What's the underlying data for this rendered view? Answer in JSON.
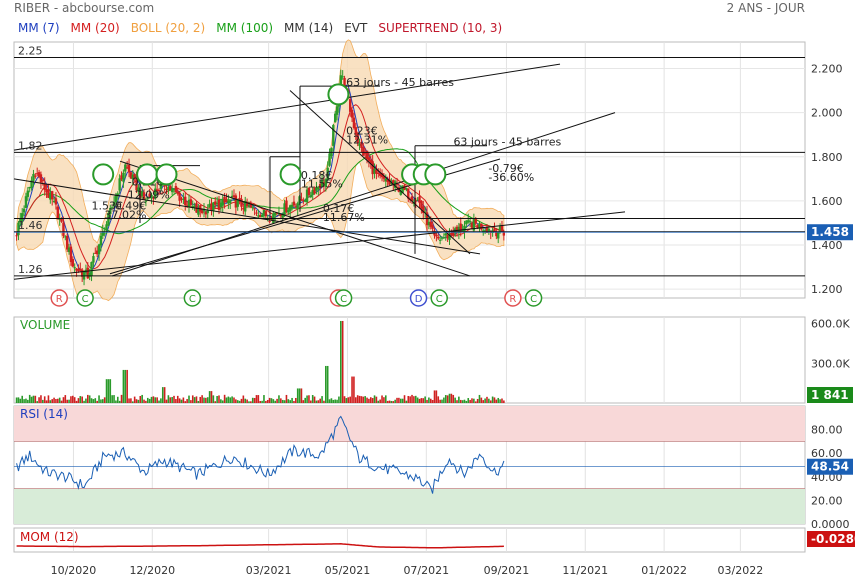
{
  "header": {
    "title": "RIBER - abcbourse.com",
    "period": "2 ANS - JOUR"
  },
  "legend": [
    {
      "label": "MM (7)",
      "color": "#1f3fbf"
    },
    {
      "label": "MM (20)",
      "color": "#d42020"
    },
    {
      "label": "BOLL (20, 2)",
      "color": "#f0a040"
    },
    {
      "label": "MM (100)",
      "color": "#19a019"
    },
    {
      "label": "MM (14)",
      "color": "#333333"
    },
    {
      "label": "EVT",
      "color": "#333333"
    },
    {
      "label": "SUPERTREND (10, 3)",
      "color": "#c0182c"
    }
  ],
  "colors": {
    "candle_up": "#2a9a2a",
    "candle_down": "#d02020",
    "boll_fill": "#f8dcb8",
    "last_price": "#1a5fb4",
    "rsi_line": "#1a5fb4",
    "mom_line": "#cc1111",
    "mom_badge": "#cc1111"
  },
  "chart_data": [
    {
      "type": "candlestick",
      "panel": "price",
      "yticks": [
        1.2,
        1.4,
        1.6,
        1.8,
        2.0,
        2.2
      ],
      "ytick_labels": [
        "1.200",
        "1.400",
        "1.600",
        "1.800",
        "2.000",
        "2.200"
      ],
      "ylim": [
        1.16,
        2.32
      ],
      "last_price": 1.458,
      "last_price_label": "1.458",
      "horizontal_levels": [
        2.25,
        1.82,
        1.52,
        1.46,
        1.26
      ],
      "level_labels": [
        {
          "text": "2.25",
          "price": 2.25
        },
        {
          "text": "1.82",
          "price": 1.82
        },
        {
          "text": "1.46",
          "price": 1.46
        },
        {
          "text": "1.26",
          "price": 1.26
        }
      ],
      "key_points": [
        {
          "date": "2020-08-18",
          "close": 1.46
        },
        {
          "date": "2020-09-01",
          "close": 1.74
        },
        {
          "date": "2020-09-18",
          "close": 1.56
        },
        {
          "date": "2020-10-01",
          "close": 1.3
        },
        {
          "date": "2020-10-12",
          "close": 1.26
        },
        {
          "date": "2020-10-28",
          "close": 1.52
        },
        {
          "date": "2020-11-10",
          "close": 1.76
        },
        {
          "date": "2020-11-25",
          "close": 1.6
        },
        {
          "date": "2020-12-10",
          "close": 1.68
        },
        {
          "date": "2021-01-05",
          "close": 1.55
        },
        {
          "date": "2021-02-01",
          "close": 1.6
        },
        {
          "date": "2021-03-01",
          "close": 1.53
        },
        {
          "date": "2021-03-25",
          "close": 1.6
        },
        {
          "date": "2021-04-15",
          "close": 1.7
        },
        {
          "date": "2021-04-26",
          "close": 2.18
        },
        {
          "date": "2021-05-10",
          "close": 1.85
        },
        {
          "date": "2021-05-25",
          "close": 1.7
        },
        {
          "date": "2021-06-10",
          "close": 1.66
        },
        {
          "date": "2021-06-25",
          "close": 1.6
        },
        {
          "date": "2021-07-08",
          "close": 1.42
        },
        {
          "date": "2021-07-20",
          "close": 1.45
        },
        {
          "date": "2021-08-05",
          "close": 1.5
        },
        {
          "date": "2021-08-20",
          "close": 1.47
        },
        {
          "date": "2021-08-30",
          "close": 1.458
        }
      ],
      "annotations": [
        {
          "text": "63 jours - 45 barres",
          "date": "2021-04-30",
          "price": 2.12
        },
        {
          "text": "63 jours - 45 barres",
          "date": "2021-07-22",
          "price": 1.85
        },
        {
          "text": "0.23€",
          "date": "2021-04-30",
          "price": 1.9
        },
        {
          "text": "12.31%",
          "date": "2021-04-30",
          "price": 1.86
        },
        {
          "text": "-0.79€",
          "date": "2021-08-18",
          "price": 1.73
        },
        {
          "text": "-36.60%",
          "date": "2021-08-18",
          "price": 1.69
        },
        {
          "text": "0.18€",
          "date": "2021-03-26",
          "price": 1.7
        },
        {
          "text": "11.55%",
          "date": "2021-03-26",
          "price": 1.66
        },
        {
          "text": "0.17€",
          "date": "2021-04-12",
          "price": 1.55
        },
        {
          "text": "11.67%",
          "date": "2021-04-12",
          "price": 1.51
        },
        {
          "text": "-0.21€",
          "date": "2020-11-12",
          "price": 1.67
        },
        {
          "text": "12.09%",
          "date": "2020-11-12",
          "price": 1.61
        },
        {
          "text": "1.53€",
          "date": "2020-10-15",
          "price": 1.56
        },
        {
          "text": "0.49€",
          "date": "2020-11-02",
          "price": 1.56
        },
        {
          "text": "37.02%",
          "date": "2020-10-25",
          "price": 1.52
        }
      ],
      "smileys": [
        "2020-10-24",
        "2020-11-27",
        "2020-12-12",
        "2021-03-18",
        "2021-04-24",
        "2021-06-20",
        "2021-06-29",
        "2021-07-08"
      ],
      "event_markers": [
        {
          "letter": "R",
          "date": "2020-09-20",
          "color": "#e05050"
        },
        {
          "letter": "C",
          "date": "2020-10-10",
          "color": "#2a9a2a"
        },
        {
          "letter": "C",
          "date": "2021-01-01",
          "color": "#2a9a2a"
        },
        {
          "letter": "R",
          "date": "2021-04-24",
          "color": "#e05050"
        },
        {
          "letter": "C",
          "date": "2021-04-28",
          "color": "#2a9a2a"
        },
        {
          "letter": "D",
          "date": "2021-06-25",
          "color": "#4050d0"
        },
        {
          "letter": "C",
          "date": "2021-07-11",
          "color": "#2a9a2a"
        },
        {
          "letter": "R",
          "date": "2021-09-06",
          "color": "#e05050"
        },
        {
          "letter": "C",
          "date": "2021-09-22",
          "color": "#2a9a2a"
        }
      ]
    },
    {
      "type": "bar",
      "panel": "volume",
      "title": "VOLUME",
      "yticks": [
        300000,
        600000
      ],
      "ytick_labels": [
        "300.0K",
        "600.0K"
      ],
      "ylim": [
        0,
        650000
      ],
      "last_value_label": "1 841",
      "peaks": [
        {
          "date": "2020-10-28",
          "value": 180000
        },
        {
          "date": "2020-11-10",
          "value": 250000
        },
        {
          "date": "2020-12-10",
          "value": 120000
        },
        {
          "date": "2021-01-15",
          "value": 90000
        },
        {
          "date": "2021-02-20",
          "value": 60000
        },
        {
          "date": "2021-03-25",
          "value": 110000
        },
        {
          "date": "2021-04-15",
          "value": 280000
        },
        {
          "date": "2021-04-26",
          "value": 620000
        },
        {
          "date": "2021-05-05",
          "value": 200000
        },
        {
          "date": "2021-07-08",
          "value": 95000
        },
        {
          "date": "2021-07-20",
          "value": 70000
        }
      ]
    },
    {
      "type": "line",
      "panel": "rsi",
      "title": "RSI (14)",
      "yticks": [
        0,
        20,
        40,
        60,
        80
      ],
      "ytick_labels": [
        "0.0000",
        "20.00",
        "40.00",
        "60.00",
        "80.00"
      ],
      "ylim": [
        0,
        100
      ],
      "zones": [
        70,
        30
      ],
      "last_value_label": "48.54",
      "points": [
        {
          "date": "2020-08-18",
          "value": 48
        },
        {
          "date": "2020-08-28",
          "value": 58
        },
        {
          "date": "2020-09-10",
          "value": 44
        },
        {
          "date": "2020-09-25",
          "value": 40
        },
        {
          "date": "2020-10-10",
          "value": 32
        },
        {
          "date": "2020-10-25",
          "value": 58
        },
        {
          "date": "2020-11-10",
          "value": 60
        },
        {
          "date": "2020-11-25",
          "value": 44
        },
        {
          "date": "2020-12-10",
          "value": 54
        },
        {
          "date": "2021-01-05",
          "value": 42
        },
        {
          "date": "2021-02-01",
          "value": 57
        },
        {
          "date": "2021-03-01",
          "value": 42
        },
        {
          "date": "2021-03-20",
          "value": 62
        },
        {
          "date": "2021-04-10",
          "value": 58
        },
        {
          "date": "2021-04-26",
          "value": 88
        },
        {
          "date": "2021-05-10",
          "value": 56
        },
        {
          "date": "2021-05-25",
          "value": 48
        },
        {
          "date": "2021-06-10",
          "value": 44
        },
        {
          "date": "2021-06-25",
          "value": 38
        },
        {
          "date": "2021-07-05",
          "value": 28
        },
        {
          "date": "2021-07-18",
          "value": 56
        },
        {
          "date": "2021-07-30",
          "value": 42
        },
        {
          "date": "2021-08-12",
          "value": 60
        },
        {
          "date": "2021-08-22",
          "value": 44
        },
        {
          "date": "2021-08-30",
          "value": 48.54
        }
      ]
    },
    {
      "type": "line",
      "panel": "momentum",
      "title": "MOM (12)",
      "last_value_label": "-0.0280",
      "points": [
        {
          "date": "2020-08-18",
          "value": 0.0
        },
        {
          "date": "2020-10-10",
          "value": -0.05
        },
        {
          "date": "2021-01-01",
          "value": 0.02
        },
        {
          "date": "2021-04-26",
          "value": 0.18
        },
        {
          "date": "2021-05-25",
          "value": -0.08
        },
        {
          "date": "2021-07-08",
          "value": -0.15
        },
        {
          "date": "2021-08-30",
          "value": -0.028
        }
      ]
    }
  ],
  "x_axis": {
    "ticks": [
      {
        "label": "10/2020",
        "date": "2020-10-01"
      },
      {
        "label": "12/2020",
        "date": "2020-12-01"
      },
      {
        "label": "03/2021",
        "date": "2021-03-01"
      },
      {
        "label": "05/2021",
        "date": "2021-05-01"
      },
      {
        "label": "07/2021",
        "date": "2021-07-01"
      },
      {
        "label": "09/2021",
        "date": "2021-09-01"
      },
      {
        "label": "11/2021",
        "date": "2021-11-01"
      },
      {
        "label": "01/2022",
        "date": "2022-01-01"
      },
      {
        "label": "03/2022",
        "date": "2022-03-01"
      }
    ]
  }
}
